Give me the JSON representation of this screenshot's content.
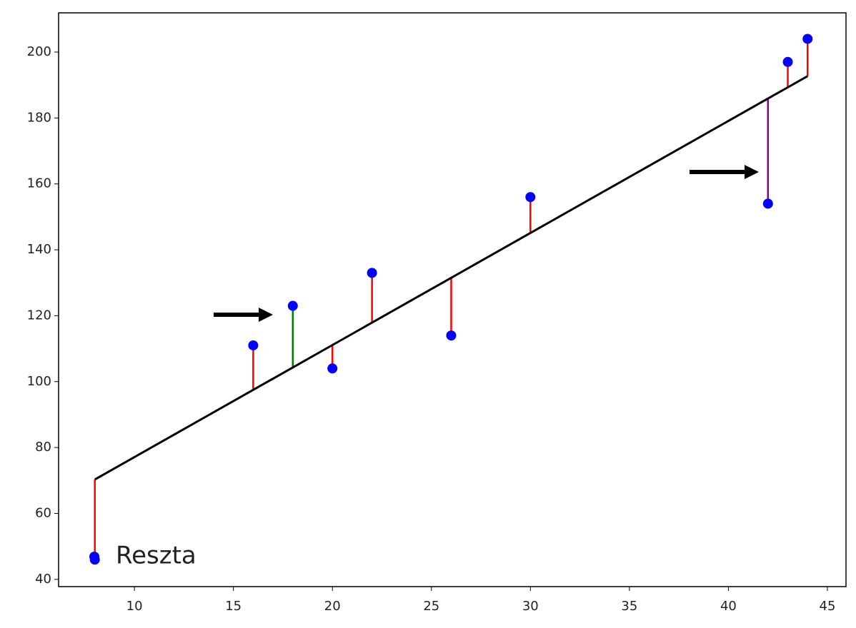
{
  "chart_data": {
    "type": "scatter",
    "x": [
      8,
      16,
      18,
      20,
      22,
      26,
      30,
      42,
      43,
      44
    ],
    "series": [
      {
        "name": "Reszta",
        "color": "#0000ff",
        "values": [
          46,
          111,
          123,
          104,
          133,
          114,
          156,
          154,
          197,
          204
        ]
      }
    ],
    "fitted_values": [
      70.3,
      97.5,
      104.3,
      111.1,
      117.9,
      131.5,
      145.1,
      185.9,
      189.3,
      192.7
    ],
    "fit_color": "#000000",
    "residual_colors": [
      "#ff0000",
      "#ff0000",
      "#008000",
      "#ff0000",
      "#ff0000",
      "#ff0000",
      "#ff0000",
      "#800080",
      "#ff0000",
      "#ff0000"
    ],
    "xlim": [
      6.17,
      45.94
    ],
    "ylim": [
      37.8,
      211.9
    ],
    "xticks": [
      10,
      15,
      20,
      25,
      30,
      35,
      40,
      45
    ],
    "yticks": [
      40,
      60,
      80,
      100,
      120,
      140,
      160,
      180,
      200
    ],
    "grid": false,
    "legend": "lower left"
  }
}
